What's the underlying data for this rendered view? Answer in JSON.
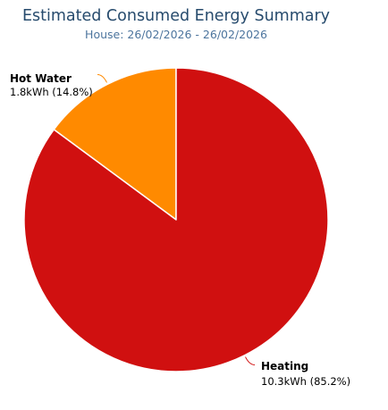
{
  "chart_data": {
    "type": "pie",
    "title": "Estimated Consumed Energy Summary",
    "subtitle": "House: 26/02/2026 - 26/02/2026",
    "slices": [
      {
        "name": "Hot Water",
        "value": 1.8,
        "unit": "kWh",
        "percent": 14.8,
        "value_label": "1.8kWh (14.8%)",
        "color": "#ff8a00"
      },
      {
        "name": "Heating",
        "value": 10.3,
        "unit": "kWh",
        "percent": 85.2,
        "value_label": "10.3kWh (85.2%)",
        "color": "#d01010"
      }
    ]
  }
}
